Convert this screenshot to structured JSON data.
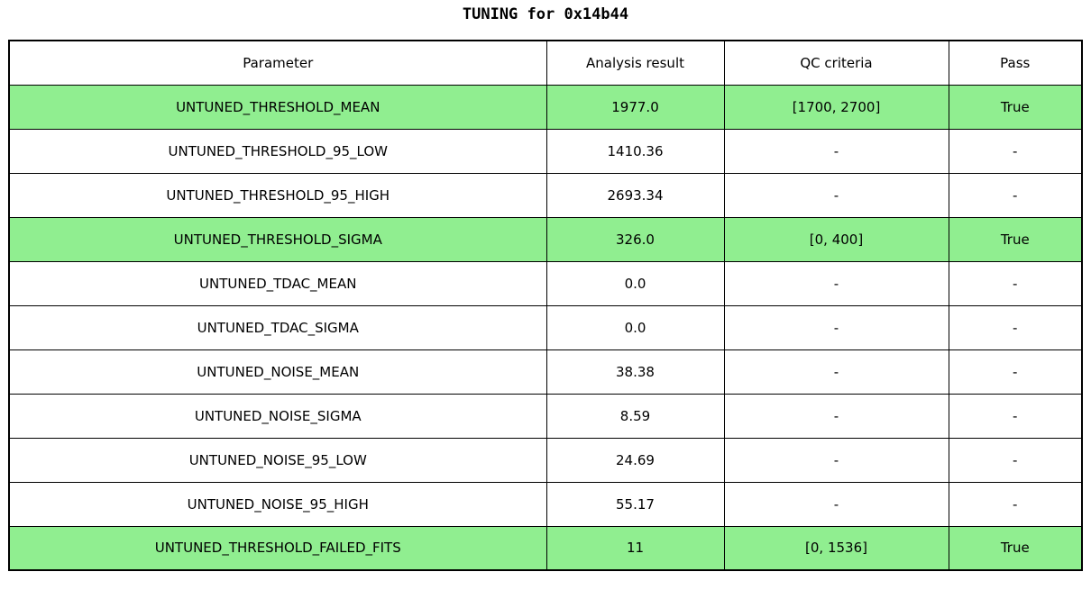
{
  "title": "TUNING for 0x14b44",
  "colors": {
    "highlight_green": "#90ee90",
    "border": "#000000",
    "background": "#ffffff",
    "text": "#000000"
  },
  "table": {
    "headers": {
      "parameter": "Parameter",
      "result": "Analysis result",
      "qc": "QC criteria",
      "pass": "Pass"
    },
    "rows": [
      {
        "parameter": "UNTUNED_THRESHOLD_MEAN",
        "result": "1977.0",
        "qc": "[1700, 2700]",
        "pass": "True",
        "highlight": true
      },
      {
        "parameter": "UNTUNED_THRESHOLD_95_LOW",
        "result": "1410.36",
        "qc": "-",
        "pass": "-",
        "highlight": false
      },
      {
        "parameter": "UNTUNED_THRESHOLD_95_HIGH",
        "result": "2693.34",
        "qc": "-",
        "pass": "-",
        "highlight": false
      },
      {
        "parameter": "UNTUNED_THRESHOLD_SIGMA",
        "result": "326.0",
        "qc": "[0, 400]",
        "pass": "True",
        "highlight": true
      },
      {
        "parameter": "UNTUNED_TDAC_MEAN",
        "result": "0.0",
        "qc": "-",
        "pass": "-",
        "highlight": false
      },
      {
        "parameter": "UNTUNED_TDAC_SIGMA",
        "result": "0.0",
        "qc": "-",
        "pass": "-",
        "highlight": false
      },
      {
        "parameter": "UNTUNED_NOISE_MEAN",
        "result": "38.38",
        "qc": "-",
        "pass": "-",
        "highlight": false
      },
      {
        "parameter": "UNTUNED_NOISE_SIGMA",
        "result": "8.59",
        "qc": "-",
        "pass": "-",
        "highlight": false
      },
      {
        "parameter": "UNTUNED_NOISE_95_LOW",
        "result": "24.69",
        "qc": "-",
        "pass": "-",
        "highlight": false
      },
      {
        "parameter": "UNTUNED_NOISE_95_HIGH",
        "result": "55.17",
        "qc": "-",
        "pass": "-",
        "highlight": false
      },
      {
        "parameter": "UNTUNED_THRESHOLD_FAILED_FITS",
        "result": "11",
        "qc": "[0, 1536]",
        "pass": "True",
        "highlight": true
      }
    ]
  },
  "chart_data": {
    "type": "table",
    "title": "TUNING for 0x14b44",
    "columns": [
      "Parameter",
      "Analysis result",
      "QC criteria",
      "Pass"
    ],
    "rows": [
      [
        "UNTUNED_THRESHOLD_MEAN",
        "1977.0",
        "[1700, 2700]",
        "True"
      ],
      [
        "UNTUNED_THRESHOLD_95_LOW",
        "1410.36",
        "-",
        "-"
      ],
      [
        "UNTUNED_THRESHOLD_95_HIGH",
        "2693.34",
        "-",
        "-"
      ],
      [
        "UNTUNED_THRESHOLD_SIGMA",
        "326.0",
        "[0, 400]",
        "True"
      ],
      [
        "UNTUNED_TDAC_MEAN",
        "0.0",
        "-",
        "-"
      ],
      [
        "UNTUNED_TDAC_SIGMA",
        "0.0",
        "-",
        "-"
      ],
      [
        "UNTUNED_NOISE_MEAN",
        "38.38",
        "-",
        "-"
      ],
      [
        "UNTUNED_NOISE_SIGMA",
        "8.59",
        "-",
        "-"
      ],
      [
        "UNTUNED_NOISE_95_LOW",
        "24.69",
        "-",
        "-"
      ],
      [
        "UNTUNED_NOISE_95_HIGH",
        "55.17",
        "-",
        "-"
      ],
      [
        "UNTUNED_THRESHOLD_FAILED_FITS",
        "11",
        "[0, 1536]",
        "True"
      ]
    ],
    "highlighted_rows": [
      0,
      3,
      10
    ],
    "highlight_color": "#90ee90",
    "grid": true,
    "legend": false
  }
}
